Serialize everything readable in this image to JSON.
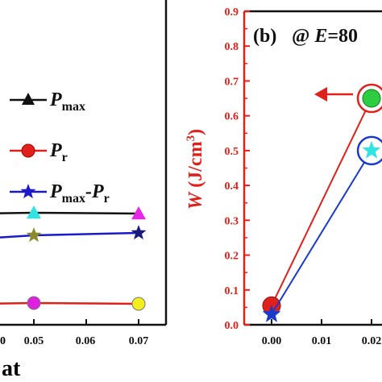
{
  "chart_data": [
    {
      "type": "line",
      "xlabel_fragment": "at",
      "x_tick_labels": [
        "0",
        "0.05",
        "0.06",
        "0.07"
      ],
      "series": [
        {
          "name_main": "P",
          "name_sub": "max",
          "color": "#111111",
          "marker": "triangle",
          "marker_colors": [
            "#111111",
            "#33e3e3",
            "#e628e6"
          ],
          "x": [
            0.04,
            0.05,
            0.07
          ],
          "y": [
            265,
            264,
            265
          ]
        },
        {
          "name_main": "P",
          "name_sub": "r",
          "color": "#e0201b",
          "marker": "circle",
          "marker_colors": [
            "#e0201b",
            "#e020e0",
            "#f2ee1c"
          ],
          "x": [
            0.04,
            0.05,
            0.07
          ],
          "y": [
            377,
            376,
            377
          ]
        },
        {
          "name_main": "P",
          "name_sub": "max",
          "name_mid": "-P",
          "name_sub2": "r",
          "color": "#1a1acc",
          "marker": "star",
          "marker_colors": [
            "#1a1acc",
            "#8a8a2a",
            "#1a1a7a"
          ],
          "x": [
            0.04,
            0.05,
            0.07
          ],
          "y": [
            296,
            292,
            289
          ]
        }
      ]
    },
    {
      "type": "line",
      "panel_label": "(b)",
      "annotation_prefix": "@ ",
      "annotation_var": "E",
      "annotation_value": "=80",
      "ylabel_main": "W",
      "ylabel_unit": "(J/cm",
      "ylabel_exp": "3",
      "ylabel_close": ")",
      "ylim": [
        0,
        0.9
      ],
      "y_ticks": [
        "0.0",
        "0.1",
        "0.2",
        "0.3",
        "0.4",
        "0.5",
        "0.6",
        "0.7",
        "0.8",
        "0.9"
      ],
      "x_ticks": [
        "0.00",
        "0.01",
        "0.02"
      ],
      "grid": false,
      "series": [
        {
          "color": "#e0201b",
          "marker": "circle",
          "x": [
            0.0,
            0.02
          ],
          "y": [
            0.055,
            0.65
          ]
        },
        {
          "color": "#1a3acc",
          "marker": "star",
          "x": [
            0.0,
            0.02
          ],
          "y": [
            0.03,
            0.5
          ]
        }
      ]
    }
  ]
}
